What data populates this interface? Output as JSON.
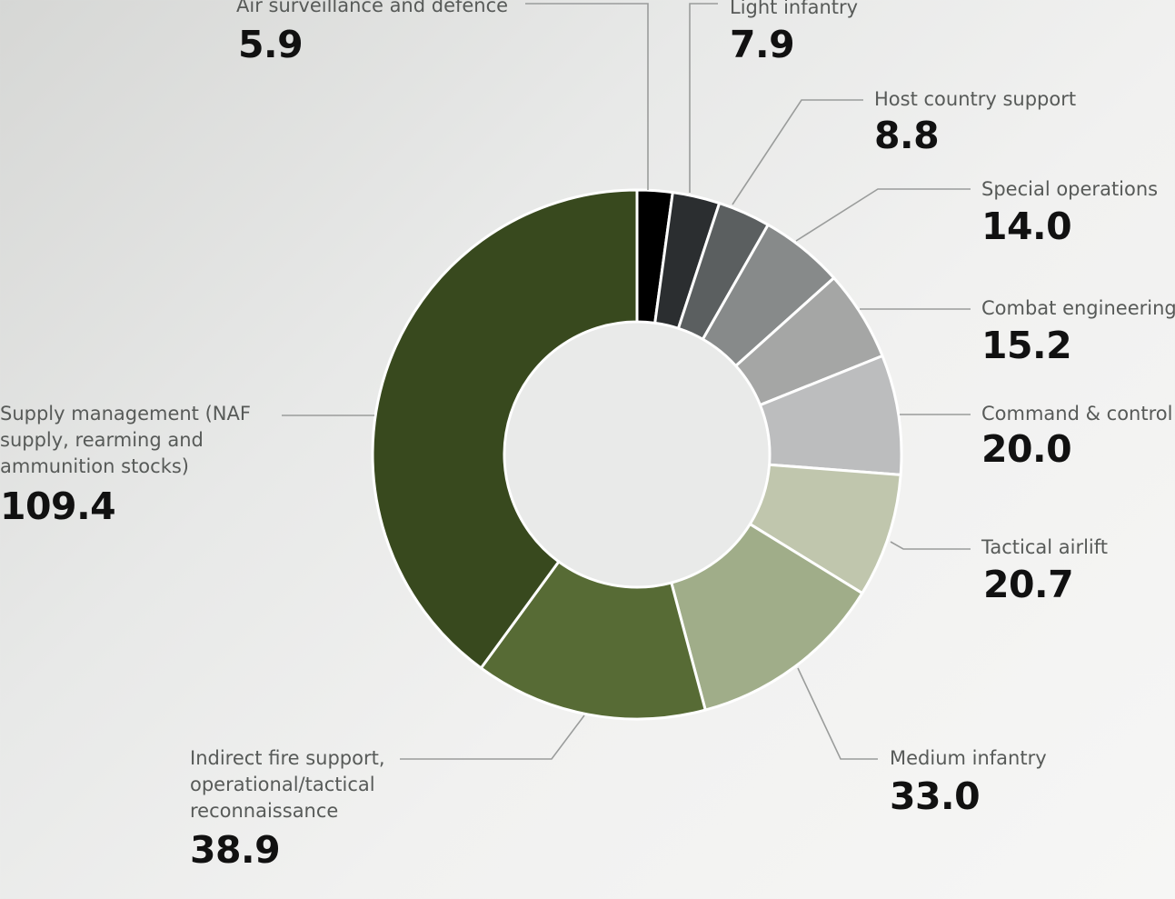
{
  "chart_data": {
    "type": "pie",
    "donut": true,
    "slices": [
      {
        "label": "Air surveillance and defence",
        "value": 5.9,
        "display": "5.9",
        "color": "#000000"
      },
      {
        "label": "Light infantry",
        "value": 7.9,
        "display": "7.9",
        "color": "#2b2e30"
      },
      {
        "label": "Host country support",
        "value": 8.8,
        "display": "8.8",
        "color": "#5b5f60"
      },
      {
        "label": "Special operations",
        "value": 14.0,
        "display": "14.0",
        "color": "#878a8a"
      },
      {
        "label": "Combat engineering",
        "value": 15.2,
        "display": "15.2",
        "color": "#a5a6a5"
      },
      {
        "label": "Command & control",
        "value": 20.0,
        "display": "20.0",
        "color": "#bcbdbe"
      },
      {
        "label": "Tactical airlift",
        "value": 20.7,
        "display": "20.7",
        "color": "#c0c6ad"
      },
      {
        "label": "Medium infantry",
        "value": 33.0,
        "display": "33.0",
        "color": "#a0ad89"
      },
      {
        "label": "Indirect fire support, operational/tactical reconnaissance",
        "value": 38.9,
        "display": "38.9",
        "color": "#576b35"
      },
      {
        "label": "Supply management (NAF supply, rearming and ammunition stocks)",
        "value": 109.4,
        "display": "109.4",
        "color": "#38491e"
      }
    ]
  }
}
